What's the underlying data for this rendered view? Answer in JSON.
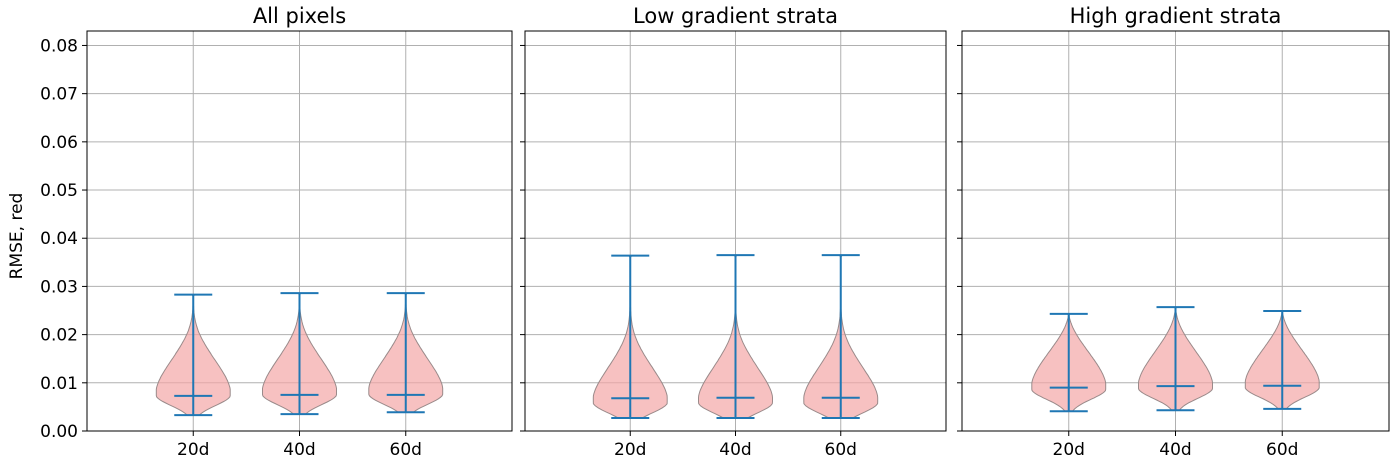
{
  "chart_data": {
    "type": "violin",
    "ylabel": "RMSE, red",
    "ylim": [
      0,
      0.083
    ],
    "yticks": [
      "0.00",
      "0.01",
      "0.02",
      "0.03",
      "0.04",
      "0.05",
      "0.06",
      "0.07",
      "0.08"
    ],
    "categories": [
      "20d",
      "40d",
      "60d"
    ],
    "grid": true,
    "colors": {
      "violin": "#f4a6a6",
      "stats": "#1f77b4"
    },
    "panels": [
      {
        "title": "All pixels",
        "violins": [
          {
            "category": "20d",
            "min": 0.0033,
            "median": 0.0073,
            "max": 0.0283,
            "mode": 0.0075
          },
          {
            "category": "40d",
            "min": 0.0035,
            "median": 0.0075,
            "max": 0.0286,
            "mode": 0.0077
          },
          {
            "category": "60d",
            "min": 0.0039,
            "median": 0.0075,
            "max": 0.0286,
            "mode": 0.0078
          }
        ]
      },
      {
        "title": "Low gradient strata",
        "violins": [
          {
            "category": "20d",
            "min": 0.0027,
            "median": 0.0068,
            "max": 0.0364,
            "mode": 0.006
          },
          {
            "category": "40d",
            "min": 0.0027,
            "median": 0.0069,
            "max": 0.0365,
            "mode": 0.006
          },
          {
            "category": "60d",
            "min": 0.0027,
            "median": 0.0069,
            "max": 0.0365,
            "mode": 0.006
          }
        ]
      },
      {
        "title": "High gradient strata",
        "violins": [
          {
            "category": "20d",
            "min": 0.0041,
            "median": 0.009,
            "max": 0.0243,
            "mode": 0.0088
          },
          {
            "category": "40d",
            "min": 0.0043,
            "median": 0.0093,
            "max": 0.0257,
            "mode": 0.009
          },
          {
            "category": "60d",
            "min": 0.0046,
            "median": 0.0094,
            "max": 0.0249,
            "mode": 0.0092
          }
        ]
      }
    ]
  }
}
